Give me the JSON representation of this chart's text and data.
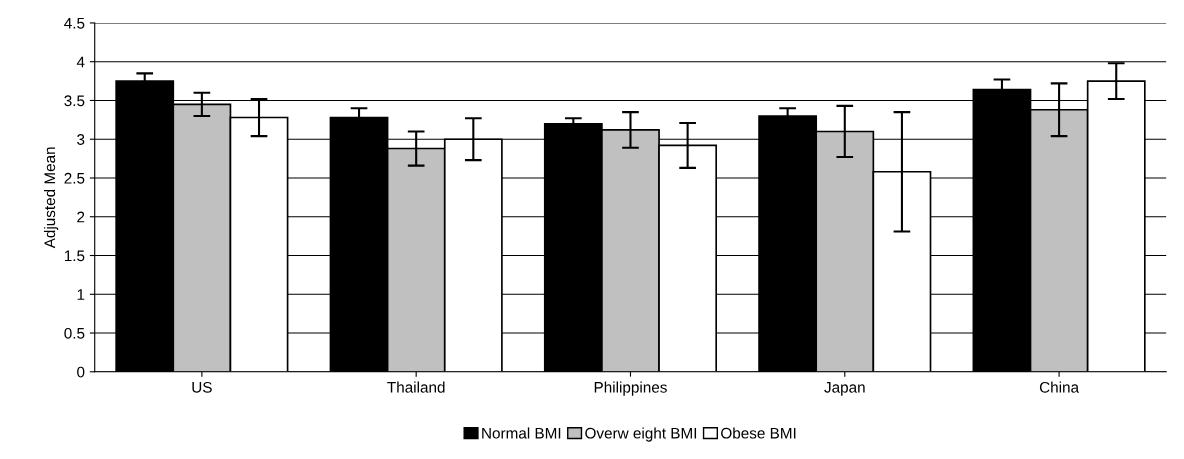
{
  "chart_data": {
    "type": "bar",
    "ylabel": "Adjusted Mean",
    "categories": [
      "US",
      "Thailand",
      "Philippines",
      "Japan",
      "China"
    ],
    "series": [
      {
        "name": "Normal BMI",
        "color": "#000000",
        "values": [
          3.75,
          3.28,
          3.2,
          3.3,
          3.64
        ],
        "errors": [
          0.1,
          0.12,
          0.07,
          0.1,
          0.13
        ]
      },
      {
        "name": "Overw eight BMI",
        "color": "#c0c0c0",
        "values": [
          3.45,
          2.88,
          3.12,
          3.1,
          3.38
        ],
        "errors": [
          0.15,
          0.22,
          0.23,
          0.33,
          0.34
        ]
      },
      {
        "name": "Obese BMI",
        "color": "#ffffff",
        "values": [
          3.28,
          3.0,
          2.92,
          2.58,
          3.75
        ],
        "errors": [
          0.24,
          0.27,
          0.29,
          0.77,
          0.23
        ]
      }
    ],
    "ylim": [
      0,
      4.5
    ],
    "yticks": [
      0,
      0.5,
      1,
      1.5,
      2,
      2.5,
      3,
      3.5,
      4,
      4.5
    ],
    "grid": "y",
    "legend": "bottom"
  }
}
